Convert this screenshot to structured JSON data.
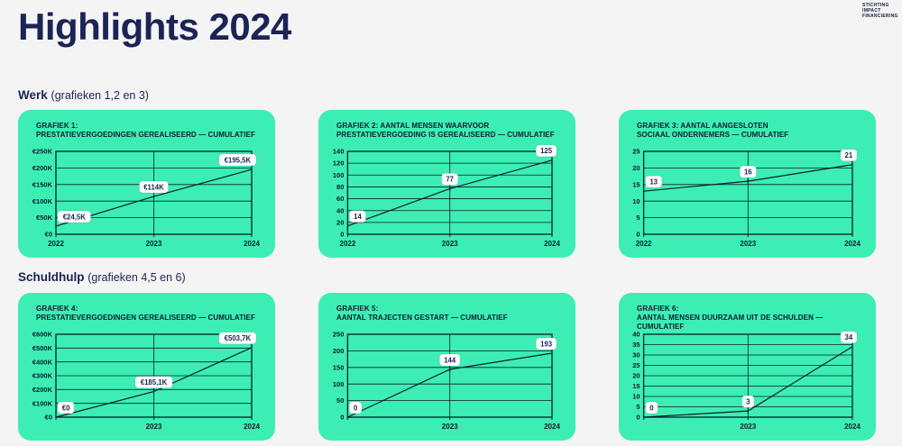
{
  "page": {
    "title": "Highlights 2024"
  },
  "logo": {
    "line1": "STICHTING",
    "line2": "IMPACT",
    "line3": "FINANCIERING"
  },
  "sections": [
    {
      "label": "Werk",
      "note": "(grafieken 1,2 en 3)"
    },
    {
      "label": "Schuldhulp",
      "note": "(grafieken 4,5 en 6)"
    }
  ],
  "colors": {
    "page_background": "#f4f4f4",
    "card": "#3ceeb3",
    "ink": "#0d1c2e",
    "navy": "#1b2455",
    "label_box": "#ffffff"
  },
  "chart_data": [
    {
      "id": "grafiek-1",
      "type": "line",
      "title1": "GRAFIEK 1:",
      "title2": "PRESTATIEVERGOEDINGEN GEREALISEERD — CUMULATIEF",
      "x_tick_labels": [
        "2022",
        "2023",
        "2024"
      ],
      "values": [
        24.5,
        114,
        195.5
      ],
      "point_labels": [
        "€24,5K",
        "€114K",
        "€195,5K"
      ],
      "y_tick_labels": [
        "€0",
        "€50K",
        "€100K",
        "€150K",
        "€200K",
        "€250K"
      ],
      "y_tick_values": [
        0,
        50,
        100,
        150,
        200,
        250
      ],
      "ylim": [
        0,
        250
      ],
      "grid": true
    },
    {
      "id": "grafiek-2",
      "type": "line",
      "title1": "GRAFIEK 2: AANTAL MENSEN WAARVOOR",
      "title2": "PRESTATIEVERGOEDING IS GEREALISEERD — CUMULATIEF",
      "x_tick_labels": [
        "2022",
        "2023",
        "2024"
      ],
      "values": [
        14,
        77,
        125
      ],
      "point_labels": [
        "14",
        "77",
        "125"
      ],
      "y_tick_labels": [
        "0",
        "20",
        "40",
        "60",
        "80",
        "100",
        "120",
        "140"
      ],
      "y_tick_values": [
        0,
        20,
        40,
        60,
        80,
        100,
        120,
        140
      ],
      "ylim": [
        0,
        140
      ],
      "grid": true
    },
    {
      "id": "grafiek-3",
      "type": "line",
      "title1": "GRAFIEK 3: AANTAL AANGESLOTEN",
      "title2": "SOCIAAL ONDERNEMERS — CUMULATIEF",
      "x_tick_labels": [
        "2022",
        "2023",
        "2024"
      ],
      "values": [
        13,
        16,
        21
      ],
      "point_labels": [
        "13",
        "16",
        "21"
      ],
      "y_tick_labels": [
        "0",
        "5",
        "10",
        "15",
        "20",
        "25"
      ],
      "y_tick_values": [
        0,
        5,
        10,
        15,
        20,
        25
      ],
      "ylim": [
        0,
        25
      ],
      "grid": true
    },
    {
      "id": "grafiek-4",
      "type": "line",
      "title1": "GRAFIEK 4:",
      "title2": "PRESTATIEVERGOEDINGEN GEREALISEERD — CUMULATIEF",
      "x_tick_labels": [
        "",
        "2023",
        "2024"
      ],
      "values": [
        0,
        185.1,
        503.7
      ],
      "point_labels": [
        "€0",
        "€185,1K",
        "€503,7K"
      ],
      "y_tick_labels": [
        "€0",
        "€100K",
        "€200K",
        "€300K",
        "€400K",
        "€500K",
        "€600K"
      ],
      "y_tick_values": [
        0,
        100,
        200,
        300,
        400,
        500,
        600
      ],
      "ylim": [
        0,
        600
      ],
      "grid": true
    },
    {
      "id": "grafiek-5",
      "type": "line",
      "title1": "GRAFIEK 5:",
      "title2": "AANTAL TRAJECTEN GESTART — CUMULATIEF",
      "x_tick_labels": [
        "",
        "2023",
        "2024"
      ],
      "values": [
        0,
        144,
        193
      ],
      "point_labels": [
        "0",
        "144",
        "193"
      ],
      "y_tick_labels": [
        "0",
        "50",
        "100",
        "150",
        "200",
        "250"
      ],
      "y_tick_values": [
        0,
        50,
        100,
        150,
        200,
        250
      ],
      "ylim": [
        0,
        250
      ],
      "grid": true
    },
    {
      "id": "grafiek-6",
      "type": "line",
      "title1": "GRAFIEK 6:",
      "title2": "AANTAL MENSEN DUURZAAM UIT DE SCHULDEN — CUMULATIEF",
      "x_tick_labels": [
        "",
        "2023",
        "2024"
      ],
      "values": [
        0,
        3,
        34
      ],
      "point_labels": [
        "0",
        "3",
        "34"
      ],
      "y_tick_labels": [
        "0",
        "5",
        "10",
        "15",
        "20",
        "25",
        "30",
        "35",
        "40"
      ],
      "y_tick_values": [
        0,
        5,
        10,
        15,
        20,
        25,
        30,
        35,
        40
      ],
      "ylim": [
        0,
        40
      ],
      "grid": true
    }
  ]
}
